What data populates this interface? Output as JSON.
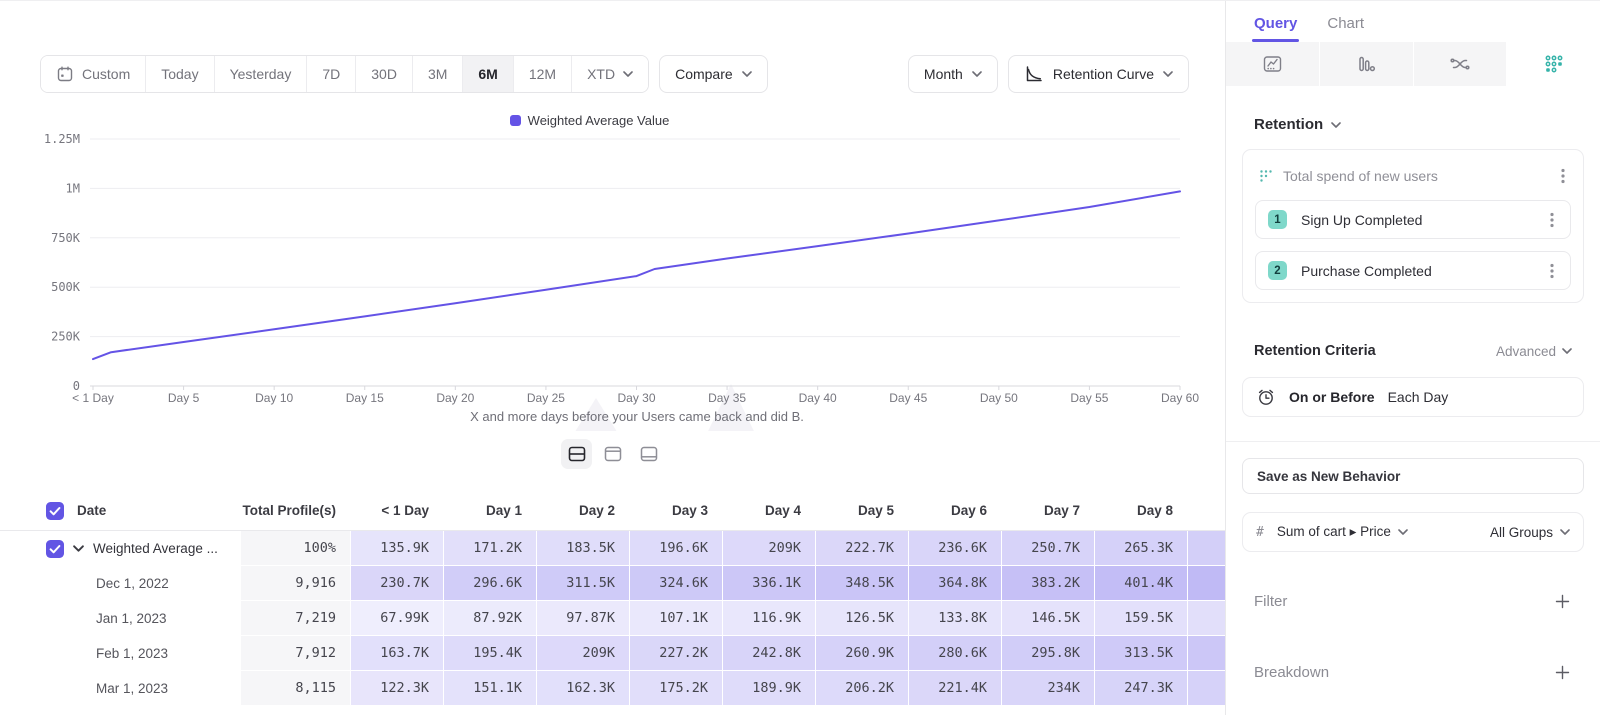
{
  "toolbar": {
    "date_ranges": [
      {
        "label": "Custom",
        "icon": "calendar"
      },
      {
        "label": "Today"
      },
      {
        "label": "Yesterday"
      },
      {
        "label": "7D"
      },
      {
        "label": "30D"
      },
      {
        "label": "3M"
      },
      {
        "label": "6M"
      },
      {
        "label": "12M"
      },
      {
        "label": "XTD",
        "chevron": true
      }
    ],
    "active_range": "6M",
    "compare_label": "Compare",
    "granularity_label": "Month",
    "chart_type_label": "Retention Curve"
  },
  "chart_data": {
    "type": "line",
    "legend": "Weighted Average Value",
    "series": [
      {
        "name": "Weighted Average Value",
        "color": "#6453e6",
        "points_day_valueK": [
          [
            0,
            135.9
          ],
          [
            1,
            171.2
          ],
          [
            5,
            222.7
          ],
          [
            10,
            287
          ],
          [
            15,
            352
          ],
          [
            20,
            419
          ],
          [
            25,
            487
          ],
          [
            30,
            556
          ],
          [
            31,
            592
          ],
          [
            35,
            645
          ],
          [
            40,
            708
          ],
          [
            45,
            772
          ],
          [
            50,
            838
          ],
          [
            55,
            906
          ],
          [
            60,
            985
          ]
        ]
      }
    ],
    "x_ticks": [
      {
        "day": 0,
        "label": "< 1 Day"
      },
      {
        "day": 5,
        "label": "Day 5"
      },
      {
        "day": 10,
        "label": "Day 10"
      },
      {
        "day": 15,
        "label": "Day 15"
      },
      {
        "day": 20,
        "label": "Day 20"
      },
      {
        "day": 25,
        "label": "Day 25"
      },
      {
        "day": 30,
        "label": "Day 30"
      },
      {
        "day": 35,
        "label": "Day 35"
      },
      {
        "day": 40,
        "label": "Day 40"
      },
      {
        "day": 45,
        "label": "Day 45"
      },
      {
        "day": 50,
        "label": "Day 50"
      },
      {
        "day": 55,
        "label": "Day 55"
      },
      {
        "day": 60,
        "label": "Day 60"
      }
    ],
    "y_ticks": [
      {
        "value": 0,
        "label": "0"
      },
      {
        "value": 250,
        "label": "250K"
      },
      {
        "value": 500,
        "label": "500K"
      },
      {
        "value": 750,
        "label": "750K"
      },
      {
        "value": 1000,
        "label": "1M"
      },
      {
        "value": 1250,
        "label": "1.25M"
      }
    ],
    "x_range_days": [
      0,
      60
    ],
    "y_range_K": [
      0,
      1250
    ],
    "xlabel": "X and more days before your Users came back and did B.",
    "grid": true,
    "legend_position": "top-center"
  },
  "table": {
    "columns": [
      "Date",
      "Total Profile(s)",
      "< 1 Day",
      "Day 1",
      "Day 2",
      "Day 3",
      "Day 4",
      "Day 5",
      "Day 6",
      "Day 7",
      "Day 8"
    ],
    "rows": [
      {
        "label": "Weighted Average ...",
        "checked": true,
        "expandable": true,
        "total": "100%",
        "values": [
          "135.9K",
          "171.2K",
          "183.5K",
          "196.6K",
          "209K",
          "222.7K",
          "236.6K",
          "250.7K",
          "265.3K"
        ]
      },
      {
        "label": "Dec 1, 2022",
        "total": "9,916",
        "values": [
          "230.7K",
          "296.6K",
          "311.5K",
          "324.6K",
          "336.1K",
          "348.5K",
          "364.8K",
          "383.2K",
          "401.4K"
        ]
      },
      {
        "label": "Jan 1, 2023",
        "total": "7,219",
        "values": [
          "67.99K",
          "87.92K",
          "97.87K",
          "107.1K",
          "116.9K",
          "126.5K",
          "133.8K",
          "146.5K",
          "159.5K"
        ]
      },
      {
        "label": "Feb 1, 2023",
        "total": "7,912",
        "values": [
          "163.7K",
          "195.4K",
          "209K",
          "227.2K",
          "242.8K",
          "260.9K",
          "280.6K",
          "295.8K",
          "313.5K"
        ]
      },
      {
        "label": "Mar 1, 2023",
        "total": "8,115",
        "values": [
          "122.3K",
          "151.1K",
          "162.3K",
          "175.2K",
          "189.9K",
          "206.2K",
          "221.4K",
          "234K",
          "247.3K"
        ]
      }
    ]
  },
  "sidebar": {
    "tabs": [
      {
        "label": "Query",
        "active": true
      },
      {
        "label": "Chart",
        "active": false
      }
    ],
    "report_type": "Retention",
    "behavior": {
      "title": "Total spend of new users",
      "steps": [
        {
          "num": "1",
          "label": "Sign Up Completed"
        },
        {
          "num": "2",
          "label": "Purchase Completed"
        }
      ]
    },
    "criteria": {
      "heading": "Retention Criteria",
      "mode": "Advanced",
      "condition": "On or Before",
      "window": "Each Day"
    },
    "save_button": "Save as New Behavior",
    "measure": {
      "prefix": "#",
      "label": "Sum of cart ▸ Price",
      "groups": "All Groups"
    },
    "sections": [
      {
        "label": "Filter"
      },
      {
        "label": "Breakdown"
      }
    ]
  },
  "colors": {
    "accent_purple": "#6255e4",
    "line_purple": "#6453e6",
    "heat_purple_rgb": "106,92,232",
    "teal": "#35b3a9",
    "badge_mint": "#7fd8ca",
    "grid_line": "#ededf1",
    "axis_line": "#d8d8dd",
    "muted_text": "#76767e"
  }
}
